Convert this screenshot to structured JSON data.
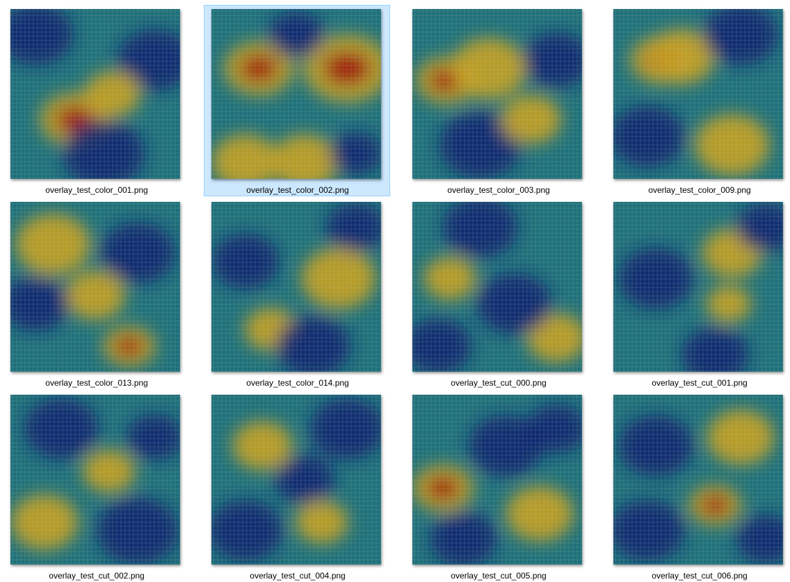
{
  "colors": {
    "selection_bg": "#cce8ff",
    "selection_border": "#99d1ff",
    "heatmap_base": "#1f6f7a",
    "heatmap_cold": "#0a1c6e",
    "heatmap_warm": "#c8a020",
    "heatmap_hot": "#a01010"
  },
  "files": [
    {
      "name": "overlay_test_color_001.png",
      "selected": false,
      "icon": "heatmap-image-icon"
    },
    {
      "name": "overlay_test_color_002.png",
      "selected": true,
      "icon": "heatmap-image-icon"
    },
    {
      "name": "overlay_test_color_003.png",
      "selected": false,
      "icon": "heatmap-image-icon"
    },
    {
      "name": "overlay_test_color_009.png",
      "selected": false,
      "icon": "heatmap-image-icon"
    },
    {
      "name": "overlay_test_color_013.png",
      "selected": false,
      "icon": "heatmap-image-icon"
    },
    {
      "name": "overlay_test_color_014.png",
      "selected": false,
      "icon": "heatmap-image-icon"
    },
    {
      "name": "overlay_test_cut_000.png",
      "selected": false,
      "icon": "heatmap-image-icon"
    },
    {
      "name": "overlay_test_cut_001.png",
      "selected": false,
      "icon": "heatmap-image-icon"
    },
    {
      "name": "overlay_test_cut_002.png",
      "selected": false,
      "icon": "heatmap-image-icon"
    },
    {
      "name": "overlay_test_cut_004.png",
      "selected": false,
      "icon": "heatmap-image-icon"
    },
    {
      "name": "overlay_test_cut_005.png",
      "selected": false,
      "icon": "heatmap-image-icon"
    },
    {
      "name": "overlay_test_cut_006.png",
      "selected": false,
      "icon": "heatmap-image-icon"
    }
  ]
}
